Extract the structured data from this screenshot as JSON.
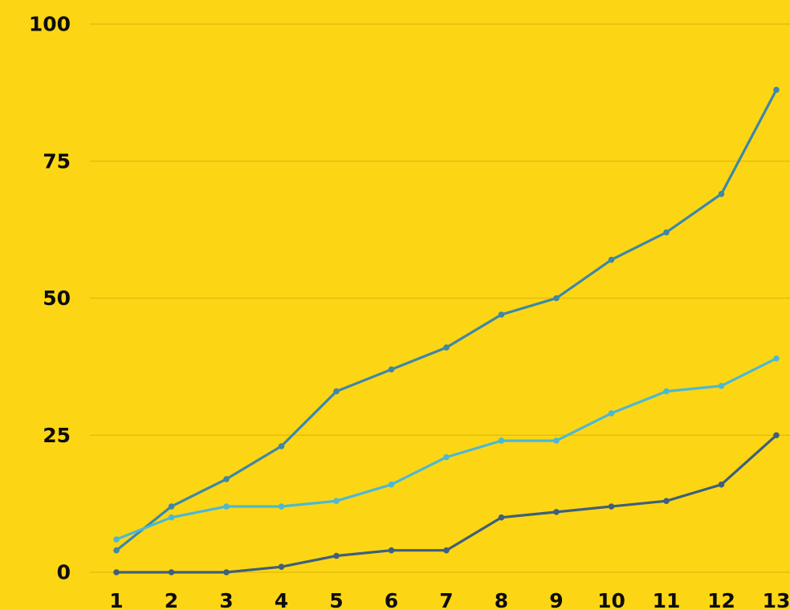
{
  "chart_data": {
    "type": "line",
    "title": "",
    "xlabel": "",
    "ylabel": "",
    "x": [
      1,
      2,
      3,
      4,
      5,
      6,
      7,
      8,
      9,
      10,
      11,
      12,
      13
    ],
    "x_tick_labels": [
      "1",
      "2",
      "3",
      "4",
      "5",
      "6",
      "7",
      "8",
      "9",
      "10",
      "11",
      "12",
      "13"
    ],
    "y_ticks": [
      0,
      25,
      50,
      75,
      100
    ],
    "y_tick_labels": [
      "0",
      "25",
      "50",
      "75",
      "100"
    ],
    "ylim": [
      0,
      100
    ],
    "grid": true,
    "legend": "none",
    "colors": {
      "background": "#fcd614",
      "grid": "#e3bd0f",
      "text": "#0d0d0d"
    },
    "series": [
      {
        "color": "#3e87a8",
        "values": [
          4,
          12,
          17,
          23,
          33,
          37,
          41,
          47,
          50,
          57,
          62,
          69,
          88
        ]
      },
      {
        "color": "#4cb8d4",
        "values": [
          6,
          10,
          12,
          12,
          13,
          16,
          21,
          24,
          24,
          29,
          33,
          34,
          39
        ]
      },
      {
        "color": "#3e5f7d",
        "values": [
          0,
          0,
          0,
          1,
          3,
          4,
          4,
          10,
          11,
          12,
          13,
          16,
          25
        ]
      }
    ]
  }
}
